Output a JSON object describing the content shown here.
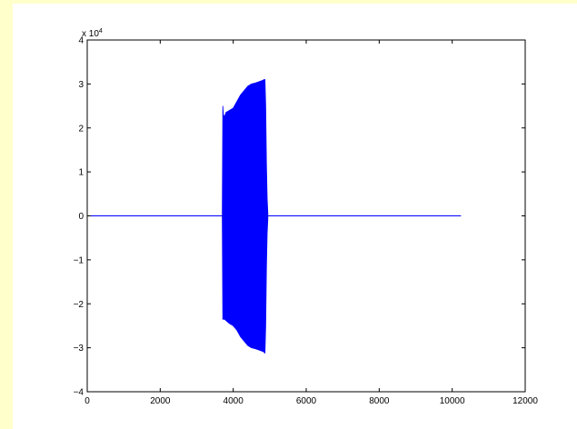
{
  "chart_data": {
    "type": "line",
    "title": "",
    "xlabel": "",
    "ylabel": "",
    "xlim": [
      0,
      12000
    ],
    "ylim": [
      -4,
      4
    ],
    "y_multiplier_label": {
      "base": "x 10",
      "exponent": "4"
    },
    "grid": false,
    "legend": "none",
    "colors": {
      "line": "#0000ff",
      "axes": "#000000",
      "figure_bg": "#ffffff",
      "outer_bg": "#ffffcc"
    },
    "x_ticks": [
      {
        "value": 0,
        "label": "0"
      },
      {
        "value": 2000,
        "label": "2000"
      },
      {
        "value": 4000,
        "label": "4000"
      },
      {
        "value": 6000,
        "label": "6000"
      },
      {
        "value": 8000,
        "label": "8000"
      },
      {
        "value": 10000,
        "label": "10000"
      },
      {
        "value": 12000,
        "label": "12000"
      }
    ],
    "y_ticks": [
      {
        "value": -4,
        "label": "−4"
      },
      {
        "value": -3,
        "label": "−3"
      },
      {
        "value": -2,
        "label": "−2"
      },
      {
        "value": -1,
        "label": "−1"
      },
      {
        "value": 0,
        "label": "0"
      },
      {
        "value": 1,
        "label": "1"
      },
      {
        "value": 2,
        "label": "2"
      },
      {
        "value": 3,
        "label": "3"
      },
      {
        "value": 4,
        "label": "4"
      }
    ],
    "series": [
      {
        "values_in_units_of": "1e4",
        "baseline": [
          [
            0,
            0
          ],
          [
            10240,
            0
          ]
        ],
        "burst": {
          "start": 3700,
          "end": 4950,
          "envelope_upper": [
            [
              3700,
              0.1
            ],
            [
              3715,
              2.5
            ],
            [
              3730,
              2.3
            ],
            [
              3760,
              2.25
            ],
            [
              3800,
              2.35
            ],
            [
              3900,
              2.4
            ],
            [
              4000,
              2.45
            ],
            [
              4100,
              2.6
            ],
            [
              4200,
              2.75
            ],
            [
              4300,
              2.85
            ],
            [
              4400,
              2.95
            ],
            [
              4500,
              3.0
            ],
            [
              4600,
              3.02
            ],
            [
              4700,
              3.05
            ],
            [
              4800,
              3.08
            ],
            [
              4850,
              3.1
            ],
            [
              4870,
              3.1
            ],
            [
              4890,
              2.5
            ],
            [
              4910,
              1.2
            ],
            [
              4930,
              0.4
            ],
            [
              4950,
              0.05
            ]
          ],
          "envelope_lower": [
            [
              3700,
              -0.1
            ],
            [
              3715,
              -2.35
            ],
            [
              3730,
              -2.35
            ],
            [
              3760,
              -2.35
            ],
            [
              3800,
              -2.38
            ],
            [
              3900,
              -2.45
            ],
            [
              4000,
              -2.5
            ],
            [
              4100,
              -2.6
            ],
            [
              4200,
              -2.75
            ],
            [
              4300,
              -2.85
            ],
            [
              4400,
              -2.95
            ],
            [
              4500,
              -3.0
            ],
            [
              4600,
              -3.02
            ],
            [
              4700,
              -3.05
            ],
            [
              4800,
              -3.08
            ],
            [
              4850,
              -3.1
            ],
            [
              4870,
              -3.12
            ],
            [
              4890,
              -2.5
            ],
            [
              4910,
              -1.2
            ],
            [
              4930,
              -0.4
            ],
            [
              4950,
              -0.05
            ]
          ]
        }
      }
    ]
  }
}
